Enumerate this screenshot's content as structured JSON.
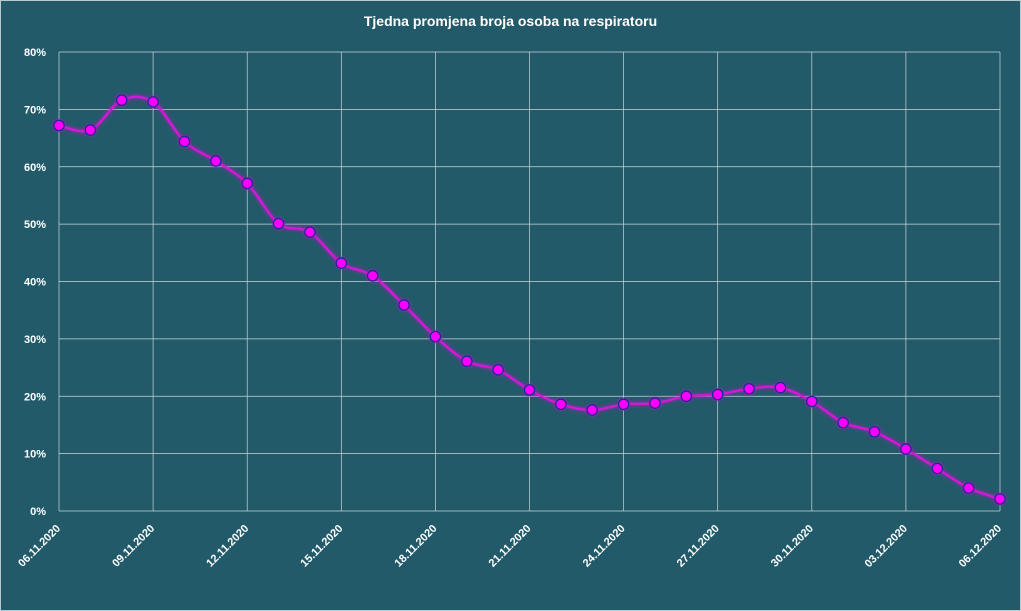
{
  "chart_data": {
    "type": "line",
    "title": "Tjedna promjena broja osoba na respiratoru",
    "xlabel": "",
    "ylabel": "",
    "ylim": [
      0,
      80
    ],
    "y_unit": "%",
    "y_ticks": [
      "0%",
      "10%",
      "20%",
      "30%",
      "40%",
      "50%",
      "60%",
      "70%",
      "80%"
    ],
    "x_tick_labels": [
      "06.11.2020",
      "09.11.2020",
      "12.11.2020",
      "15.11.2020",
      "18.11.2020",
      "21.11.2020",
      "24.11.2020",
      "27.11.2020",
      "30.11.2020",
      "03.12.2020",
      "06.12.2020"
    ],
    "grid": true,
    "legend": "none",
    "x": [
      "06.11.2020",
      "07.11.2020",
      "08.11.2020",
      "09.11.2020",
      "10.11.2020",
      "11.11.2020",
      "12.11.2020",
      "13.11.2020",
      "14.11.2020",
      "15.11.2020",
      "16.11.2020",
      "17.11.2020",
      "18.11.2020",
      "19.11.2020",
      "20.11.2020",
      "21.11.2020",
      "22.11.2020",
      "23.11.2020",
      "24.11.2020",
      "25.11.2020",
      "26.11.2020",
      "27.11.2020",
      "28.11.2020",
      "29.11.2020",
      "30.11.2020",
      "01.12.2020",
      "02.12.2020",
      "03.12.2020",
      "04.12.2020",
      "05.12.2020",
      "06.12.2020"
    ],
    "series": [
      {
        "values": [
          67.2,
          66.4,
          71.6,
          71.3,
          64.4,
          61.0,
          57.1,
          50.1,
          48.6,
          43.2,
          41.0,
          35.9,
          30.4,
          26.1,
          24.6,
          21.1,
          18.6,
          17.6,
          18.6,
          18.8,
          20.0,
          20.3,
          21.3,
          21.5,
          19.1,
          15.4,
          13.8,
          10.8,
          7.4,
          4.0,
          2.1
        ]
      }
    ],
    "colors": {
      "background": "#225a6a",
      "line": "#d814d8",
      "marker_fill": "#ff00ff",
      "marker_edge": "#1a2a8a",
      "grid": "#c9d6da",
      "text": "#ffffff"
    }
  }
}
